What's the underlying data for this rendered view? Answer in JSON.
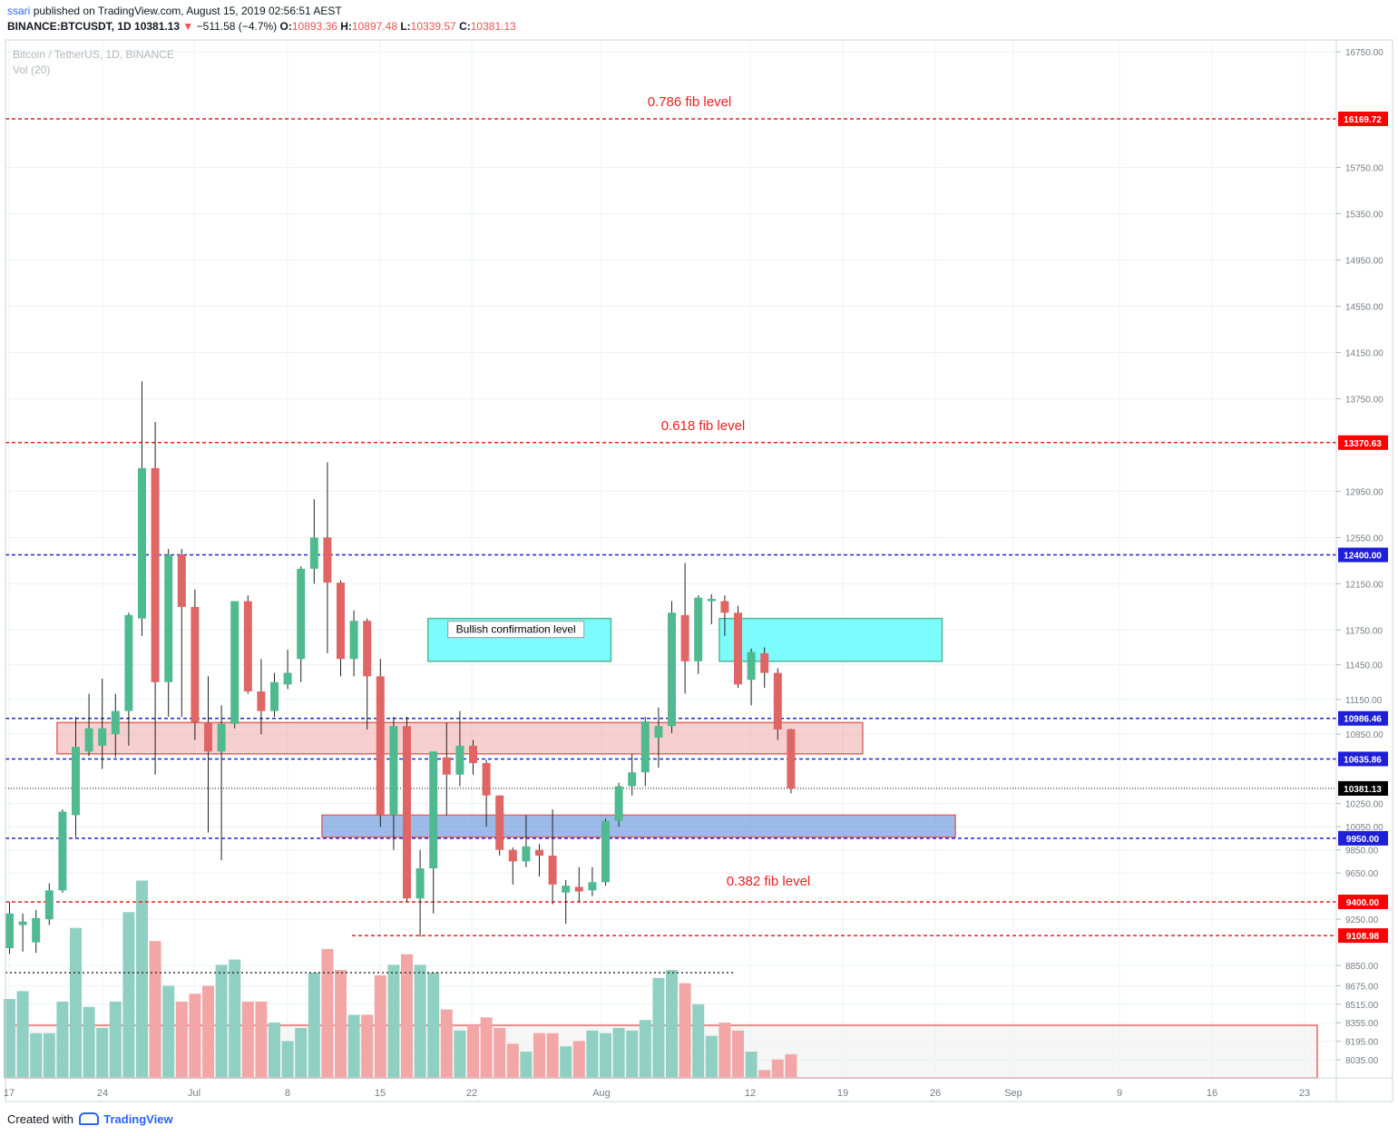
{
  "header": {
    "user": "ssari",
    "published": "published on TradingView.com, August 15, 2019 02:56:51 AEST",
    "symbol": "BINANCE:BTCUSDT, 1D",
    "last": "10381.13",
    "change_arrow": "▼",
    "change": "−511.58 (−4.7%)",
    "o_label": "O:",
    "o": "10893.36",
    "h_label": "H:",
    "h": "10897.48",
    "l_label": "L:",
    "l": "10339.57",
    "c_label": "C:",
    "c": "10381.13"
  },
  "legend": {
    "series": "Bitcoin / TetherUS, 1D, BINANCE",
    "volume": "Vol (20)"
  },
  "footer": {
    "created": "Created with",
    "brand": "TradingView"
  },
  "colors": {
    "up": "#4fb990",
    "down": "#e06666",
    "up_vol": "#8fd0c2",
    "down_vol": "#f2a6a6",
    "fib_line": "#e82020",
    "sr_line": "#2020d0",
    "grid": "#eef0f3"
  },
  "chart_data": {
    "type": "candlestick",
    "price_axis": {
      "ticks": [
        "16750.00",
        "15750.00",
        "15350.00",
        "14950.00",
        "14550.00",
        "14150.00",
        "13750.00",
        "12950.00",
        "12550.00",
        "12150.00",
        "11750.00",
        "11450.00",
        "11150.00",
        "10850.00",
        "10250.00",
        "10050.00",
        "9850.00",
        "9650.00",
        "9250.00",
        "8850.00",
        "8675.00",
        "8515.00",
        "8355.00",
        "8195.00",
        "8035.00"
      ],
      "range": [
        7950,
        16900
      ]
    },
    "time_axis": {
      "labels": [
        "17",
        "24",
        "Jul",
        "8",
        "15",
        "22",
        "Aug",
        "12",
        "19",
        "26",
        "Sep",
        "9",
        "16",
        "23"
      ]
    },
    "candles": [
      {
        "o": 9000,
        "h": 9400,
        "l": 8950,
        "c": 9300
      },
      {
        "o": 9200,
        "h": 9300,
        "l": 8970,
        "c": 9230
      },
      {
        "o": 9050,
        "h": 9330,
        "l": 8960,
        "c": 9260
      },
      {
        "o": 9250,
        "h": 9560,
        "l": 9200,
        "c": 9500
      },
      {
        "o": 9500,
        "h": 10200,
        "l": 9480,
        "c": 10180
      },
      {
        "o": 10150,
        "h": 11000,
        "l": 9960,
        "c": 10740
      },
      {
        "o": 10700,
        "h": 11200,
        "l": 10660,
        "c": 10900
      },
      {
        "o": 10750,
        "h": 11330,
        "l": 10550,
        "c": 10900
      },
      {
        "o": 10850,
        "h": 11200,
        "l": 10650,
        "c": 11050
      },
      {
        "o": 11050,
        "h": 11900,
        "l": 10750,
        "c": 11880
      },
      {
        "o": 11850,
        "h": 13900,
        "l": 11700,
        "c": 13150
      },
      {
        "o": 13150,
        "h": 13550,
        "l": 10500,
        "c": 11300
      },
      {
        "o": 11300,
        "h": 12450,
        "l": 11000,
        "c": 12400
      },
      {
        "o": 12400,
        "h": 12450,
        "l": 11000,
        "c": 11950
      },
      {
        "o": 11950,
        "h": 12100,
        "l": 10800,
        "c": 10950
      },
      {
        "o": 10950,
        "h": 11350,
        "l": 10000,
        "c": 10700
      },
      {
        "o": 10700,
        "h": 11100,
        "l": 9760,
        "c": 10940
      },
      {
        "o": 10940,
        "h": 12000,
        "l": 10900,
        "c": 12000
      },
      {
        "o": 12000,
        "h": 12050,
        "l": 11200,
        "c": 11220
      },
      {
        "o": 11220,
        "h": 11500,
        "l": 10850,
        "c": 11050
      },
      {
        "o": 11050,
        "h": 11380,
        "l": 11000,
        "c": 11300
      },
      {
        "o": 11280,
        "h": 11580,
        "l": 11240,
        "c": 11380
      },
      {
        "o": 11500,
        "h": 12300,
        "l": 11300,
        "c": 12280
      },
      {
        "o": 12280,
        "h": 12880,
        "l": 12150,
        "c": 12550
      },
      {
        "o": 12550,
        "h": 13200,
        "l": 11550,
        "c": 12160
      },
      {
        "o": 12160,
        "h": 12180,
        "l": 11350,
        "c": 11500
      },
      {
        "o": 11500,
        "h": 11920,
        "l": 11350,
        "c": 11830
      },
      {
        "o": 11830,
        "h": 11850,
        "l": 10890,
        "c": 11350
      },
      {
        "o": 11350,
        "h": 11500,
        "l": 10050,
        "c": 10150
      },
      {
        "o": 10150,
        "h": 11000,
        "l": 9850,
        "c": 10920
      },
      {
        "o": 10920,
        "h": 11000,
        "l": 9400,
        "c": 9430
      },
      {
        "o": 9430,
        "h": 9850,
        "l": 9100,
        "c": 9690
      },
      {
        "o": 9690,
        "h": 10700,
        "l": 9300,
        "c": 10700
      },
      {
        "o": 10650,
        "h": 10950,
        "l": 10150,
        "c": 10500
      },
      {
        "o": 10500,
        "h": 11050,
        "l": 10400,
        "c": 10750
      },
      {
        "o": 10750,
        "h": 10800,
        "l": 10500,
        "c": 10600
      },
      {
        "o": 10600,
        "h": 10630,
        "l": 10050,
        "c": 10320
      },
      {
        "o": 10320,
        "h": 10320,
        "l": 9800,
        "c": 9850
      },
      {
        "o": 9850,
        "h": 9870,
        "l": 9550,
        "c": 9750
      },
      {
        "o": 9750,
        "h": 10150,
        "l": 9700,
        "c": 9880
      },
      {
        "o": 9850,
        "h": 9900,
        "l": 9620,
        "c": 9800
      },
      {
        "o": 9800,
        "h": 10200,
        "l": 9380,
        "c": 9550
      },
      {
        "o": 9480,
        "h": 9590,
        "l": 9210,
        "c": 9540
      },
      {
        "o": 9530,
        "h": 9700,
        "l": 9400,
        "c": 9490
      },
      {
        "o": 9500,
        "h": 9700,
        "l": 9450,
        "c": 9570
      },
      {
        "o": 9570,
        "h": 10120,
        "l": 9540,
        "c": 10100
      },
      {
        "o": 10100,
        "h": 10430,
        "l": 10050,
        "c": 10400
      },
      {
        "o": 10400,
        "h": 10680,
        "l": 10320,
        "c": 10520
      },
      {
        "o": 10520,
        "h": 11000,
        "l": 10400,
        "c": 10960
      },
      {
        "o": 10820,
        "h": 11080,
        "l": 10560,
        "c": 10920
      },
      {
        "o": 10920,
        "h": 12000,
        "l": 10860,
        "c": 11900
      },
      {
        "o": 11880,
        "h": 12330,
        "l": 11200,
        "c": 11480
      },
      {
        "o": 11480,
        "h": 12050,
        "l": 11370,
        "c": 12030
      },
      {
        "o": 12000,
        "h": 12060,
        "l": 11800,
        "c": 12020
      },
      {
        "o": 12000,
        "h": 12050,
        "l": 11700,
        "c": 11900
      },
      {
        "o": 11900,
        "h": 11960,
        "l": 11250,
        "c": 11280
      },
      {
        "o": 11320,
        "h": 11590,
        "l": 11100,
        "c": 11560
      },
      {
        "o": 11550,
        "h": 11600,
        "l": 11250,
        "c": 11380
      },
      {
        "o": 11380,
        "h": 11420,
        "l": 10800,
        "c": 10890
      },
      {
        "o": 10893.36,
        "h": 10897.48,
        "l": 10339.57,
        "c": 10381.13
      }
    ],
    "volume": [
      0.3,
      0.33,
      0.17,
      0.17,
      0.29,
      0.57,
      0.27,
      0.19,
      0.29,
      0.63,
      0.75,
      0.52,
      0.35,
      0.29,
      0.32,
      0.35,
      0.43,
      0.45,
      0.29,
      0.29,
      0.21,
      0.14,
      0.19,
      0.4,
      0.49,
      0.41,
      0.24,
      0.24,
      0.39,
      0.43,
      0.47,
      0.43,
      0.4,
      0.26,
      0.18,
      0.2,
      0.23,
      0.19,
      0.13,
      0.1,
      0.17,
      0.17,
      0.12,
      0.14,
      0.18,
      0.17,
      0.19,
      0.18,
      0.22,
      0.38,
      0.41,
      0.36,
      0.28,
      0.16,
      0.21,
      0.18,
      0.1,
      0.03,
      0.07,
      0.09
    ],
    "volume_ma_line": 0.4,
    "horizontal_levels": [
      {
        "price": 16169.72,
        "label": "16169.72",
        "kind": "fib",
        "text": "0.786 fib level"
      },
      {
        "price": 13370.63,
        "label": "13370.63",
        "kind": "fib",
        "text": "0.618 fib level"
      },
      {
        "price": 12400.0,
        "label": "12400.00",
        "kind": "sr",
        "text": ""
      },
      {
        "price": 10986.46,
        "label": "10986.46",
        "kind": "sr",
        "text": ""
      },
      {
        "price": 10635.86,
        "label": "10635.86",
        "kind": "sr",
        "text": ""
      },
      {
        "price": 10381.13,
        "label": "10381.13",
        "kind": "last",
        "text": ""
      },
      {
        "price": 9950.0,
        "label": "9950.00",
        "kind": "sr",
        "text": ""
      },
      {
        "price": 9400.0,
        "label": "9400.00",
        "kind": "fib",
        "text": "0.382 fib level"
      },
      {
        "price": 9108.98,
        "label": "9108.98",
        "kind": "fib",
        "text": ""
      }
    ],
    "zones": [
      {
        "from_bar": 32,
        "to_bar": 45,
        "top": 11850,
        "bottom": 11480,
        "kind": "cyan",
        "text": "Bullish confirmation level"
      },
      {
        "from_bar": 54,
        "to_bar": 70,
        "top": 11850,
        "bottom": 11480,
        "kind": "cyan",
        "text": ""
      },
      {
        "from_bar": 4,
        "to_bar": 64,
        "top": 10950,
        "bottom": 10680,
        "kind": "pink",
        "text": ""
      },
      {
        "from_bar": 24,
        "to_bar": 71,
        "top": 10150,
        "bottom": 9960,
        "kind": "blue",
        "text": ""
      }
    ]
  }
}
